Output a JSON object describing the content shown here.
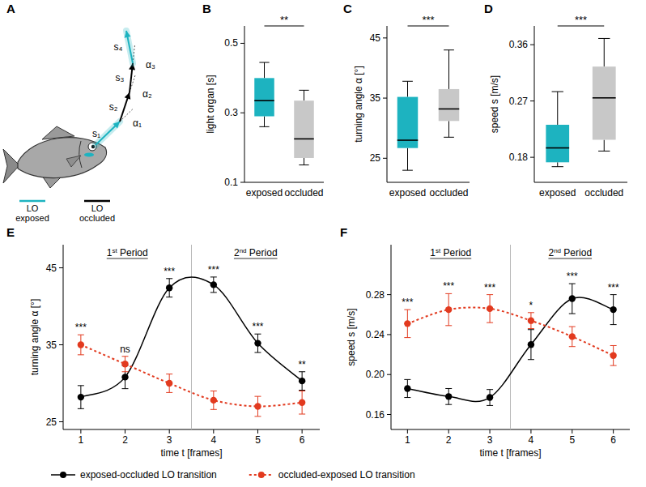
{
  "diagram": {
    "letter": "A",
    "segments": [
      {
        "label": "s₁",
        "lo": "exposed"
      },
      {
        "label": "s₂",
        "lo": "occluded"
      },
      {
        "label": "s₃",
        "lo": "occluded"
      },
      {
        "label": "s₄",
        "lo": "exposed"
      }
    ],
    "angle_labels": [
      "α₁",
      "α₂",
      "α₃"
    ],
    "legend": [
      {
        "lo": "exposed",
        "label": "LO exposed",
        "color": "#1db3c0"
      },
      {
        "lo": "occluded",
        "label": "LO occluded",
        "color": "#000000"
      }
    ]
  },
  "chart_data": [
    {
      "panel": "B",
      "type": "box",
      "categories": [
        "exposed",
        "occluded"
      ],
      "colors": [
        "#1db3c0",
        "#c8c8c8"
      ],
      "ylabel": "light organ [s]",
      "ylim": [
        0.1,
        0.55
      ],
      "yticks": [
        0.1,
        0.3,
        0.5
      ],
      "stats": {
        "low": [
          0.26,
          0.15
        ],
        "q1": [
          0.29,
          0.17
        ],
        "median": [
          0.335,
          0.225
        ],
        "q3": [
          0.4,
          0.335
        ],
        "high": [
          0.445,
          0.365
        ]
      },
      "annotation": "**"
    },
    {
      "panel": "C",
      "type": "box",
      "categories": [
        "exposed",
        "occluded"
      ],
      "colors": [
        "#1db3c0",
        "#c8c8c8"
      ],
      "ylabel": "turning angle α [°]",
      "ylim": [
        21,
        47
      ],
      "yticks": [
        25,
        35,
        45
      ],
      "stats": {
        "low": [
          23,
          28.5
        ],
        "q1": [
          26.7,
          31.2
        ],
        "median": [
          28,
          33.2
        ],
        "q3": [
          35.2,
          36.5
        ],
        "high": [
          37.8,
          43
        ]
      },
      "annotation": "***"
    },
    {
      "panel": "D",
      "type": "box",
      "categories": [
        "exposed",
        "occluded"
      ],
      "colors": [
        "#1db3c0",
        "#c8c8c8"
      ],
      "ylabel": "speed s [m/s]",
      "ylim": [
        0.14,
        0.39
      ],
      "yticks": [
        0.18,
        0.27,
        0.36
      ],
      "stats": {
        "low": [
          0.165,
          0.19
        ],
        "q1": [
          0.172,
          0.208
        ],
        "median": [
          0.195,
          0.275
        ],
        "q3": [
          0.232,
          0.325
        ],
        "high": [
          0.285,
          0.37
        ]
      },
      "annotation": "***"
    },
    {
      "panel": "E",
      "type": "line",
      "x": [
        1,
        2,
        3,
        4,
        5,
        6
      ],
      "xlim": [
        0.6,
        6.4
      ],
      "xticks": [
        1,
        2,
        3,
        4,
        5,
        6
      ],
      "ylim": [
        24,
        48
      ],
      "yticks": [
        25,
        35,
        45
      ],
      "xlabel": "time t [frames]",
      "ylabel": "turning angle α [°]",
      "periods": [
        "1st Period",
        "2nd Period"
      ],
      "period_boundary": 3.5,
      "significance": [
        "***",
        "ns",
        "***",
        "***",
        "***",
        "**"
      ],
      "legend": "bottom",
      "series": [
        {
          "name": "exposed-occluded LO transition",
          "color": "#000000",
          "line_style": "solid",
          "marker": "circle",
          "values": [
            28.2,
            30.8,
            42.4,
            42.8,
            35.2,
            30.3
          ],
          "errors": [
            1.5,
            1.5,
            1.2,
            1.0,
            1.2,
            1.2
          ]
        },
        {
          "name": "occluded-exposed LO transition",
          "color": "#e23a1f",
          "line_style": "dotted",
          "marker": "circle",
          "values": [
            35.0,
            32.5,
            30.0,
            27.8,
            27.0,
            27.5
          ],
          "errors": [
            1.3,
            1.0,
            1.2,
            1.2,
            1.3,
            1.5
          ]
        }
      ]
    },
    {
      "panel": "F",
      "type": "line",
      "x": [
        1,
        2,
        3,
        4,
        5,
        6
      ],
      "xlim": [
        0.6,
        6.4
      ],
      "xticks": [
        1,
        2,
        3,
        4,
        5,
        6
      ],
      "ylim": [
        0.145,
        0.33
      ],
      "yticks": [
        0.16,
        {
          "value": 0.2,
          "label": "0.20"
        },
        0.24,
        0.28
      ],
      "xlabel": "time t [frames]",
      "ylabel": "speed s [m/s]",
      "periods": [
        "1st Period",
        "2nd Period"
      ],
      "period_boundary": 3.5,
      "significance": [
        "***",
        "***",
        "***",
        "*",
        "***",
        "***"
      ],
      "series": [
        {
          "color": "#000000",
          "line_style": "solid",
          "marker": "circle",
          "values": [
            0.186,
            0.178,
            0.177,
            0.23,
            0.276,
            0.265
          ],
          "errors": [
            0.009,
            0.008,
            0.008,
            0.015,
            0.015,
            0.015
          ]
        },
        {
          "color": "#e23a1f",
          "line_style": "dotted",
          "marker": "circle",
          "values": [
            0.251,
            0.265,
            0.266,
            0.254,
            0.238,
            0.219
          ],
          "errors": [
            0.014,
            0.016,
            0.014,
            0.008,
            0.01,
            0.01
          ]
        }
      ]
    }
  ]
}
